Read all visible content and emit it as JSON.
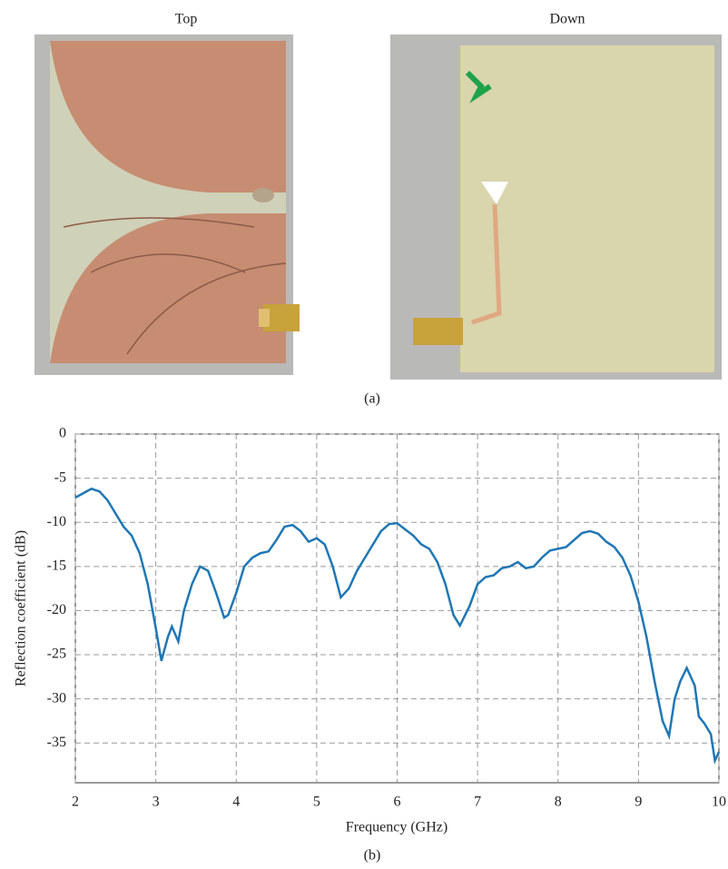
{
  "photos": {
    "labels": [
      "Top",
      "Down"
    ],
    "caption": "(a)"
  },
  "chart_caption": "(b)",
  "chart_data": {
    "type": "line",
    "x_label": "Frequency (GHz)",
    "y_label": "Reflection coefficient (dB)",
    "x": [
      2.0,
      2.1,
      2.2,
      2.3,
      2.4,
      2.5,
      2.6,
      2.7,
      2.8,
      2.9,
      3.0,
      3.07,
      3.15,
      3.2,
      3.28,
      3.35,
      3.45,
      3.55,
      3.65,
      3.75,
      3.85,
      3.9,
      4.0,
      4.1,
      4.2,
      4.3,
      4.4,
      4.5,
      4.6,
      4.7,
      4.8,
      4.9,
      5.0,
      5.1,
      5.2,
      5.3,
      5.4,
      5.5,
      5.6,
      5.7,
      5.8,
      5.9,
      6.0,
      6.1,
      6.2,
      6.3,
      6.4,
      6.5,
      6.6,
      6.7,
      6.78,
      6.9,
      7.0,
      7.1,
      7.2,
      7.3,
      7.4,
      7.5,
      7.6,
      7.7,
      7.8,
      7.9,
      8.0,
      8.1,
      8.2,
      8.3,
      8.4,
      8.5,
      8.6,
      8.7,
      8.8,
      8.9,
      9.0,
      9.1,
      9.2,
      9.3,
      9.38,
      9.45,
      9.52,
      9.6,
      9.7,
      9.75,
      9.82,
      9.9,
      9.95,
      10.0
    ],
    "values": [
      -7.2,
      -6.7,
      -6.2,
      -6.5,
      -7.5,
      -9,
      -10.5,
      -11.5,
      -13.5,
      -17,
      -22,
      -25.7,
      -23,
      -21.8,
      -23.5,
      -20,
      -17,
      -15,
      -15.5,
      -18,
      -20.8,
      -20.5,
      -18,
      -15,
      -14,
      -13.5,
      -13.3,
      -12,
      -10.5,
      -10.3,
      -11,
      -12.2,
      -11.8,
      -12.5,
      -15,
      -18.5,
      -17.5,
      -15.5,
      -14,
      -12.5,
      -11,
      -10.2,
      -10.1,
      -10.8,
      -11.5,
      -12.5,
      -13,
      -14.5,
      -17,
      -20.5,
      -21.7,
      -19.5,
      -17,
      -16.2,
      -16,
      -15.2,
      -15,
      -14.5,
      -15.2,
      -15,
      -14,
      -13.2,
      -13,
      -12.8,
      -12,
      -11.2,
      -11,
      -11.3,
      -12.2,
      -12.8,
      -14,
      -16,
      -19,
      -23,
      -28,
      -32.5,
      -34.2,
      -30,
      -28,
      -26.5,
      -28.5,
      -32,
      -32.8,
      -34,
      -37,
      -36
    ],
    "color": "#1f77b4",
    "xlim": [
      2,
      10
    ],
    "xticks": [
      2,
      3,
      4,
      5,
      6,
      7,
      8,
      9,
      10
    ],
    "ylim": [
      -39.5,
      0
    ],
    "yticks": [
      0,
      -5,
      -10,
      -15,
      -20,
      -25,
      -30,
      -35
    ],
    "grid": true
  }
}
